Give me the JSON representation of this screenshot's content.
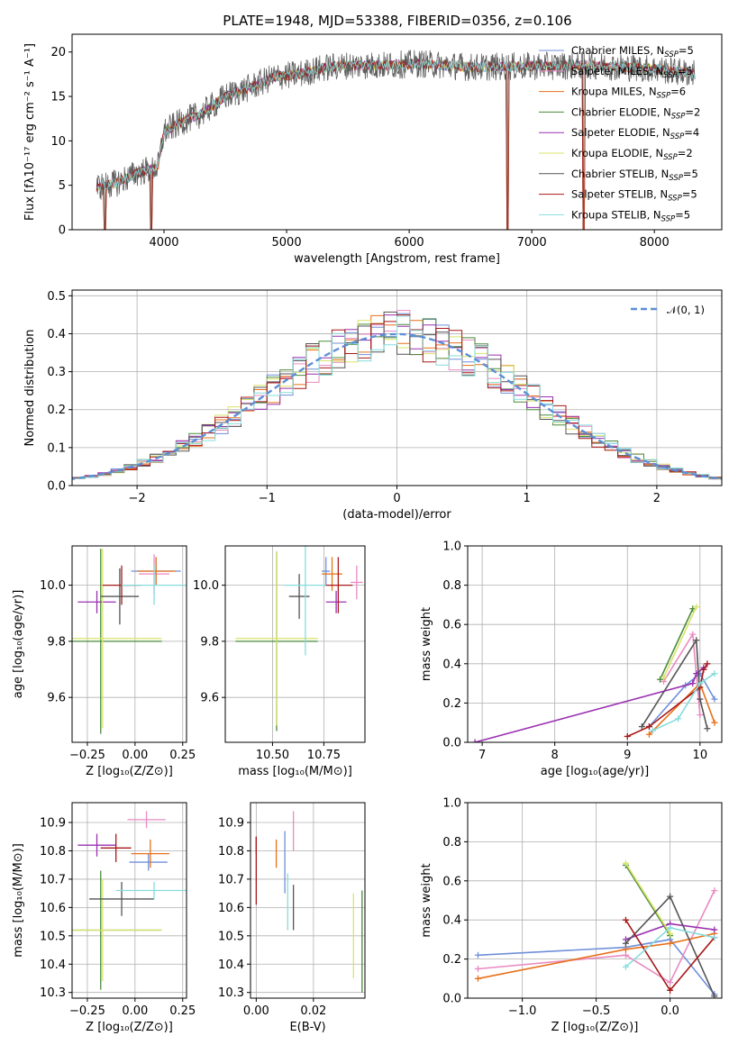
{
  "figure": {
    "title": "PLATE=1948, MJD=53388, FIBERID=0356, z=0.106"
  },
  "colors": {
    "Chabrier MILES": "#6f8fd9",
    "Salpeter MILES": "#e98ac2",
    "Kroupa MILES": "#e8711a",
    "Chabrier ELODIE": "#4a8a3a",
    "Salpeter ELODIE": "#9a30b0",
    "Kroupa ELODIE": "#d8e46a",
    "Chabrier STELIB": "#555555",
    "Salpeter STELIB": "#a81818",
    "Kroupa STELIB": "#86dcdc"
  },
  "chart_data": [
    {
      "id": "spectrum",
      "type": "line",
      "title": "PLATE=1948, MJD=53388, FIBERID=0356, z=0.106",
      "xlabel": "wavelength [Angstrom, rest frame]",
      "ylabel": "Flux [fλ10⁻¹⁷ erg cm⁻² s⁻¹ A⁻¹]",
      "xlim": [
        3250,
        8550
      ],
      "ylim": [
        0,
        22
      ],
      "xticks": [
        4000,
        5000,
        6000,
        7000,
        8000
      ],
      "yticks": [
        0,
        5,
        10,
        15,
        20
      ],
      "legend_position": "top-right",
      "continuum": {
        "x": [
          3450,
          3600,
          3800,
          3950,
          4000,
          4150,
          4300,
          4500,
          4700,
          4900,
          5100,
          5300,
          5500,
          5800,
          6100,
          6500,
          7000,
          7500,
          8000,
          8300
        ],
        "y": [
          4.8,
          5.2,
          6.5,
          7.0,
          11.0,
          12.2,
          13.0,
          15.0,
          16.0,
          17.2,
          17.5,
          18.2,
          18.5,
          18.5,
          18.7,
          18.3,
          18.4,
          18.5,
          18.1,
          17.6
        ]
      },
      "data_range": [
        3450,
        8330
      ],
      "dropouts": [
        3520,
        3895,
        6800,
        7420
      ],
      "legend": [
        {
          "name": "Chabrier MILES, N",
          "sub": "SSP",
          "tail": "=5"
        },
        {
          "name": "Salpeter MILES, N",
          "sub": "SSP",
          "tail": "=5"
        },
        {
          "name": "Kroupa MILES, N",
          "sub": "SSP",
          "tail": "=6"
        },
        {
          "name": "Chabrier ELODIE, N",
          "sub": "SSP",
          "tail": "=2"
        },
        {
          "name": "Salpeter ELODIE, N",
          "sub": "SSP",
          "tail": "=4"
        },
        {
          "name": "Kroupa ELODIE, N",
          "sub": "SSP",
          "tail": "=2"
        },
        {
          "name": "Chabrier STELIB, N",
          "sub": "SSP",
          "tail": "=5"
        },
        {
          "name": "Salpeter STELIB, N",
          "sub": "SSP",
          "tail": "=5"
        },
        {
          "name": "Kroupa STELIB, N",
          "sub": "SSP",
          "tail": "=5"
        }
      ]
    },
    {
      "id": "residuals",
      "type": "line",
      "xlabel": "(data-model)/error",
      "ylabel": "Normed distribution",
      "xlim": [
        -2.5,
        2.5
      ],
      "ylim": [
        0,
        0.515
      ],
      "xticks": [
        -2,
        -1,
        0,
        1,
        2
      ],
      "xticklabels": [
        "−2",
        "−1",
        "0",
        "1",
        "2"
      ],
      "yticks": [
        0.0,
        0.1,
        0.2,
        0.3,
        0.4,
        0.5
      ],
      "yticklabels": [
        "0.0",
        "0.1",
        "0.2",
        "0.3",
        "0.4",
        "0.5"
      ],
      "bin_width": 0.1,
      "series_note": "step histograms, one per fit",
      "gaussian_label": "𝒩(0, 1)",
      "legend_position": "top-right"
    },
    {
      "id": "age_vs_Z",
      "type": "scatter",
      "xlabel": "Z [log₁₀(Z/Z⊙)]",
      "ylabel": "age  [log₁₀(age/yr)]",
      "xlim": [
        -0.33,
        0.27
      ],
      "ylim": [
        9.44,
        10.14
      ],
      "xticks": [
        -0.25,
        0.0,
        0.25
      ],
      "xticklabels": [
        "−0.25",
        "0.00",
        "0.25"
      ],
      "yticks": [
        9.6,
        9.8,
        10.0
      ],
      "yticklabels": [
        "9.6",
        "9.8",
        "10.0"
      ],
      "points": [
        {
          "series": "Chabrier MILES",
          "x": 0.11,
          "y": 10.05,
          "xerr": 0.13,
          "yerr": 0.05
        },
        {
          "series": "Salpeter MILES",
          "x": 0.1,
          "y": 10.04,
          "xerr": 0.08,
          "yerr": 0.07
        },
        {
          "series": "Kroupa MILES",
          "x": 0.11,
          "y": 10.05,
          "xerr": 0.1,
          "yerr": 0.05
        },
        {
          "series": "Chabrier ELODIE",
          "x": -0.18,
          "y": 9.8,
          "xerr": 0.32,
          "yerr": 0.33
        },
        {
          "series": "Salpeter ELODIE",
          "x": -0.2,
          "y": 9.94,
          "xerr": 0.1,
          "yerr": 0.04
        },
        {
          "series": "Kroupa ELODIE",
          "x": -0.17,
          "y": 9.81,
          "xerr": 0.31,
          "yerr": 0.32
        },
        {
          "series": "Chabrier STELIB",
          "x": -0.08,
          "y": 9.96,
          "xerr": 0.1,
          "yerr": 0.1
        },
        {
          "series": "Salpeter STELIB",
          "x": -0.07,
          "y": 10.0,
          "xerr": 0.1,
          "yerr": 0.07
        },
        {
          "series": "Kroupa STELIB",
          "x": 0.1,
          "y": 10.0,
          "xerr": 0.17,
          "yerr": 0.07
        }
      ]
    },
    {
      "id": "age_vs_mass",
      "type": "scatter",
      "xlabel": "mass [log₁₀(M/M⊙)]",
      "ylabel": "",
      "xlim": [
        10.27,
        10.95
      ],
      "ylim": [
        9.44,
        10.14
      ],
      "xticks": [
        10.5,
        10.75
      ],
      "xticklabels": [
        "10.50",
        "10.75"
      ],
      "yticks": [
        9.6,
        9.8,
        10.0
      ],
      "yticklabels": [
        "9.6",
        "9.8",
        "10.0"
      ],
      "points": [
        {
          "series": "Chabrier MILES",
          "x": 10.76,
          "y": 10.05,
          "xerr": 0.02,
          "yerr": 0.05
        },
        {
          "series": "Salpeter MILES",
          "x": 10.91,
          "y": 10.01,
          "xerr": 0.03,
          "yerr": 0.06
        },
        {
          "series": "Kroupa MILES",
          "x": 10.79,
          "y": 10.04,
          "xerr": 0.05,
          "yerr": 0.06
        },
        {
          "series": "Chabrier ELODIE",
          "x": 10.52,
          "y": 9.8,
          "xerr": 0.2,
          "yerr": 0.32
        },
        {
          "series": "Salpeter ELODIE",
          "x": 10.81,
          "y": 9.94,
          "xerr": 0.05,
          "yerr": 0.04
        },
        {
          "series": "Kroupa ELODIE",
          "x": 10.52,
          "y": 9.81,
          "xerr": 0.2,
          "yerr": 0.31
        },
        {
          "series": "Chabrier STELIB",
          "x": 10.63,
          "y": 9.96,
          "xerr": 0.05,
          "yerr": 0.08
        },
        {
          "series": "Salpeter STELIB",
          "x": 10.82,
          "y": 10.0,
          "xerr": 0.07,
          "yerr": 0.1
        },
        {
          "series": "Kroupa STELIB",
          "x": 10.66,
          "y": 10.0,
          "xerr": 0.1,
          "yerr": 0.25
        }
      ]
    },
    {
      "id": "weight_vs_age",
      "type": "line",
      "xlabel": "age  [log₁₀(age/yr)]",
      "ylabel": "mass weight",
      "xlim": [
        6.8,
        10.3
      ],
      "ylim": [
        0,
        1
      ],
      "xticks": [
        7,
        8,
        9,
        10
      ],
      "yticks": [
        0.0,
        0.2,
        0.4,
        0.6,
        0.8,
        1.0
      ],
      "yticklabels": [
        "0.0",
        "0.2",
        "0.4",
        "0.6",
        "0.8",
        "1.0"
      ],
      "series": [
        {
          "name": "Chabrier MILES",
          "x": [
            9.3,
            9.8,
            10.0,
            10.2
          ],
          "y": [
            0.08,
            0.29,
            0.35,
            0.22
          ]
        },
        {
          "name": "Salpeter MILES",
          "x": [
            9.5,
            9.9,
            10.0
          ],
          "y": [
            0.31,
            0.55,
            0.14
          ]
        },
        {
          "name": "Kroupa MILES",
          "x": [
            9.3,
            10.0,
            10.2
          ],
          "y": [
            0.04,
            0.3,
            0.1
          ]
        },
        {
          "name": "Chabrier ELODIE",
          "x": [
            9.45,
            9.9
          ],
          "y": [
            0.32,
            0.68
          ]
        },
        {
          "name": "Salpeter ELODIE",
          "x": [
            6.9,
            9.9,
            9.95,
            10.05
          ],
          "y": [
            0.0,
            0.3,
            0.35,
            0.38
          ]
        },
        {
          "name": "Kroupa ELODIE",
          "x": [
            9.5,
            9.95
          ],
          "y": [
            0.33,
            0.69
          ]
        },
        {
          "name": "Chabrier STELIB",
          "x": [
            9.2,
            9.95,
            10.0,
            10.1
          ],
          "y": [
            0.08,
            0.52,
            0.22,
            0.07
          ]
        },
        {
          "name": "Salpeter STELIB",
          "x": [
            9.0,
            9.3,
            10.0,
            10.05,
            10.1
          ],
          "y": [
            0.03,
            0.08,
            0.28,
            0.37,
            0.4
          ]
        },
        {
          "name": "Kroupa STELIB",
          "x": [
            9.35,
            9.7,
            10.0,
            10.2
          ],
          "y": [
            0.06,
            0.12,
            0.3,
            0.35
          ]
        }
      ]
    },
    {
      "id": "mass_vs_Z",
      "type": "scatter",
      "xlabel": "Z [log₁₀(Z/Z⊙)]",
      "ylabel": "mass [log₁₀(M/M⊙)]",
      "xlim": [
        -0.33,
        0.27
      ],
      "ylim": [
        10.28,
        10.97
      ],
      "xticks": [
        -0.25,
        0.0,
        0.25
      ],
      "xticklabels": [
        "−0.25",
        "0.00",
        "0.25"
      ],
      "yticks": [
        10.3,
        10.4,
        10.5,
        10.6,
        10.7,
        10.8,
        10.9
      ],
      "yticklabels": [
        "10.3",
        "10.4",
        "10.5",
        "10.6",
        "10.7",
        "10.8",
        "10.9"
      ],
      "points": [
        {
          "series": "Chabrier MILES",
          "x": 0.07,
          "y": 10.76,
          "xerr": 0.1,
          "yerr": 0.03
        },
        {
          "series": "Salpeter MILES",
          "x": 0.06,
          "y": 10.91,
          "xerr": 0.1,
          "yerr": 0.03
        },
        {
          "series": "Kroupa MILES",
          "x": 0.08,
          "y": 10.79,
          "xerr": 0.1,
          "yerr": 0.05
        },
        {
          "series": "Chabrier ELODIE",
          "x": -0.18,
          "y": 10.52,
          "xerr": 0.32,
          "yerr": 0.21
        },
        {
          "series": "Salpeter ELODIE",
          "x": -0.2,
          "y": 10.82,
          "xerr": 0.1,
          "yerr": 0.04
        },
        {
          "series": "Kroupa ELODIE",
          "x": -0.17,
          "y": 10.52,
          "xerr": 0.31,
          "yerr": 0.18
        },
        {
          "series": "Chabrier STELIB",
          "x": -0.07,
          "y": 10.63,
          "xerr": 0.17,
          "yerr": 0.06
        },
        {
          "series": "Salpeter STELIB",
          "x": -0.1,
          "y": 10.81,
          "xerr": 0.08,
          "yerr": 0.05
        },
        {
          "series": "Kroupa STELIB",
          "x": 0.1,
          "y": 10.66,
          "xerr": 0.2,
          "yerr": 0.03
        }
      ]
    },
    {
      "id": "mass_vs_ebv",
      "type": "scatter",
      "xlabel": "E(B-V)",
      "ylabel": "",
      "xlim": [
        -0.002,
        0.038
      ],
      "ylim": [
        10.28,
        10.97
      ],
      "xticks": [
        0.0,
        0.02
      ],
      "xticklabels": [
        "0.00",
        "0.02"
      ],
      "yticks": [
        10.3,
        10.4,
        10.5,
        10.6,
        10.7,
        10.8,
        10.9
      ],
      "yticklabels": [
        "10.3",
        "10.4",
        "10.5",
        "10.6",
        "10.7",
        "10.8",
        "10.9"
      ],
      "points": [
        {
          "series": "Chabrier MILES",
          "x": 0.01,
          "y": 10.76,
          "xerr": 0.0,
          "yerr": 0.11
        },
        {
          "series": "Salpeter MILES",
          "x": 0.013,
          "y": 10.87,
          "xerr": 0.0,
          "yerr": 0.07
        },
        {
          "series": "Kroupa MILES",
          "x": 0.007,
          "y": 10.79,
          "xerr": 0.0,
          "yerr": 0.05
        },
        {
          "series": "Chabrier ELODIE",
          "x": 0.037,
          "y": 10.48,
          "xerr": 0.0,
          "yerr": 0.18
        },
        {
          "series": "Salpeter ELODIE",
          "x": 0.0,
          "y": 10.82,
          "xerr": 0.0,
          "yerr": 0.03
        },
        {
          "series": "Kroupa ELODIE",
          "x": 0.034,
          "y": 10.5,
          "xerr": 0.0,
          "yerr": 0.15
        },
        {
          "series": "Chabrier STELIB",
          "x": 0.013,
          "y": 10.6,
          "xerr": 0.0,
          "yerr": 0.08
        },
        {
          "series": "Salpeter STELIB",
          "x": 0.0,
          "y": 10.73,
          "xerr": 0.0,
          "yerr": 0.12
        },
        {
          "series": "Kroupa STELIB",
          "x": 0.011,
          "y": 10.62,
          "xerr": 0.0,
          "yerr": 0.1
        }
      ]
    },
    {
      "id": "weight_vs_Z",
      "type": "line",
      "xlabel": "Z [log₁₀(Z/Z⊙)]",
      "ylabel": "mass weight",
      "xlim": [
        -1.37,
        0.35
      ],
      "ylim": [
        0,
        1
      ],
      "xticks": [
        -1.0,
        -0.5,
        0.0
      ],
      "xticklabels": [
        "−1.0",
        "−0.5",
        "0.0"
      ],
      "yticks": [
        0.0,
        0.2,
        0.4,
        0.6,
        0.8,
        1.0
      ],
      "yticklabels": [
        "0.0",
        "0.2",
        "0.4",
        "0.6",
        "0.8",
        "1.0"
      ],
      "series": [
        {
          "name": "Chabrier MILES",
          "x": [
            -1.3,
            -0.3,
            0.0,
            0.3
          ],
          "y": [
            0.22,
            0.26,
            0.3,
            0.02
          ]
        },
        {
          "name": "Salpeter MILES",
          "x": [
            -1.3,
            -0.3,
            0.0,
            0.3
          ],
          "y": [
            0.15,
            0.22,
            0.08,
            0.55
          ]
        },
        {
          "name": "Kroupa MILES",
          "x": [
            -1.3,
            -0.3,
            0.0,
            0.3
          ],
          "y": [
            0.1,
            0.25,
            0.28,
            0.33
          ]
        },
        {
          "name": "Chabrier ELODIE",
          "x": [
            -0.3,
            0.0
          ],
          "y": [
            0.68,
            0.32
          ]
        },
        {
          "name": "Salpeter ELODIE",
          "x": [
            -0.3,
            0.0,
            0.3
          ],
          "y": [
            0.3,
            0.38,
            0.35
          ]
        },
        {
          "name": "Kroupa ELODIE",
          "x": [
            -0.3,
            0.0
          ],
          "y": [
            0.69,
            0.33
          ]
        },
        {
          "name": "Chabrier STELIB",
          "x": [
            -0.3,
            0.0,
            0.3
          ],
          "y": [
            0.28,
            0.52,
            0.01
          ]
        },
        {
          "name": "Salpeter STELIB",
          "x": [
            -0.3,
            0.0,
            0.3
          ],
          "y": [
            0.4,
            0.04,
            0.31
          ]
        },
        {
          "name": "Kroupa STELIB",
          "x": [
            -0.3,
            0.0,
            0.3
          ],
          "y": [
            0.16,
            0.36,
            0.31
          ]
        }
      ]
    }
  ]
}
